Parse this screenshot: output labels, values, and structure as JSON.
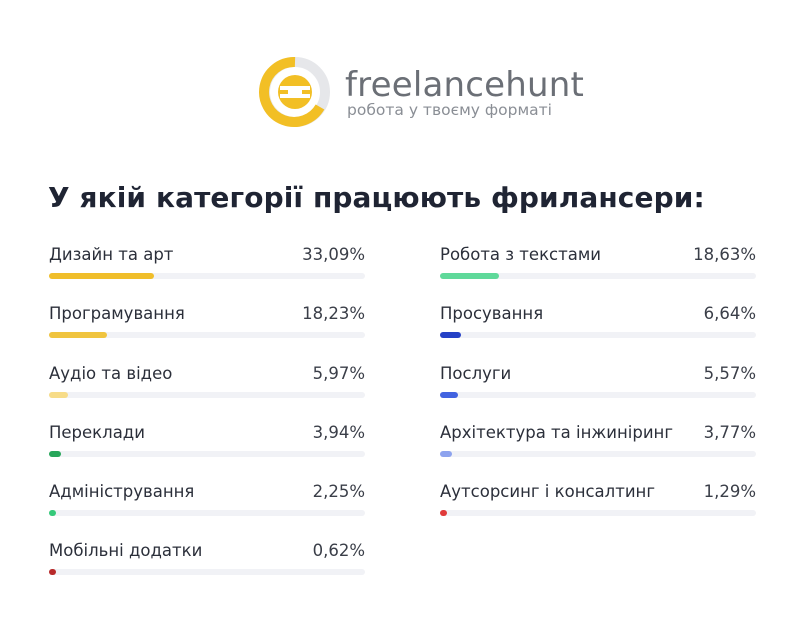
{
  "brand": {
    "name": "freelancehunt",
    "tagline": "робота у твоєму форматі",
    "accent": "#f2bf25"
  },
  "chart_data": {
    "type": "bar",
    "title": "У якій категорії працюють фрилансери:",
    "unit": "%",
    "columns": [
      [
        {
          "label": "Дизайн та арт",
          "value": 33.09,
          "display": "33,09%",
          "color": "#f0be2a"
        },
        {
          "label": "Програмування",
          "value": 18.23,
          "display": "18,23%",
          "color": "#f0c43e"
        },
        {
          "label": "Аудіо та відео",
          "value": 5.97,
          "display": "5,97%",
          "color": "#f7dc88"
        },
        {
          "label": "Переклади",
          "value": 3.94,
          "display": "3,94%",
          "color": "#27a65a"
        },
        {
          "label": "Адміністрування",
          "value": 2.25,
          "display": "2,25%",
          "color": "#35c97a"
        },
        {
          "label": "Мобільні додатки",
          "value": 0.62,
          "display": "0,62%",
          "color": "#b82a2a"
        }
      ],
      [
        {
          "label": "Робота з текстами",
          "value": 18.63,
          "display": "18,63%",
          "color": "#5fd99a"
        },
        {
          "label": "Просування",
          "value": 6.64,
          "display": "6,64%",
          "color": "#2541c6"
        },
        {
          "label": "Послуги",
          "value": 5.57,
          "display": "5,57%",
          "color": "#4263e0"
        },
        {
          "label": "Архітектура та інжиніринг",
          "value": 3.77,
          "display": "3,77%",
          "color": "#8da3ee"
        },
        {
          "label": "Аутсорсинг і консалтинг",
          "value": 1.29,
          "display": "1,29%",
          "color": "#e03a3a"
        }
      ]
    ],
    "xlim": [
      0,
      100
    ]
  }
}
